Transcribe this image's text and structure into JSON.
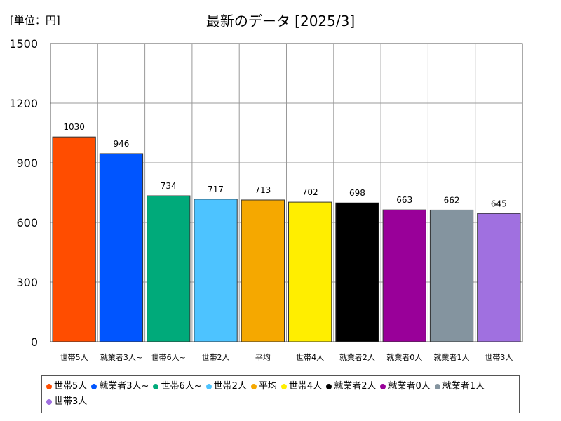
{
  "chart_data": {
    "type": "bar",
    "title": "最新のデータ [2025/3]",
    "unit_label": "[単位：円]",
    "categories": [
      "世帯5人",
      "就業者3人~",
      "世帯6人~",
      "世帯2人",
      "平均",
      "世帯4人",
      "就業者2人",
      "就業者0人",
      "就業者1人",
      "世帯3人"
    ],
    "values": [
      1030,
      946,
      734,
      717,
      713,
      702,
      698,
      663,
      662,
      645
    ],
    "colors": [
      "#FF4D00",
      "#0055FF",
      "#00AA7A",
      "#4DC3FF",
      "#F5A800",
      "#FFEE00",
      "#000000",
      "#990099",
      "#84949F",
      "#A070E0"
    ],
    "ylim": [
      0,
      1500
    ],
    "yticks": [
      0,
      300,
      600,
      900,
      1200,
      1500
    ],
    "grid": true,
    "legend_position": "bottom",
    "legend": [
      "世帯5人",
      "就業者3人~",
      "世帯6人~",
      "世帯2人",
      "平均",
      "世帯4人",
      "就業者2人",
      "就業者0人",
      "就業者1人",
      "世帯3人"
    ]
  }
}
